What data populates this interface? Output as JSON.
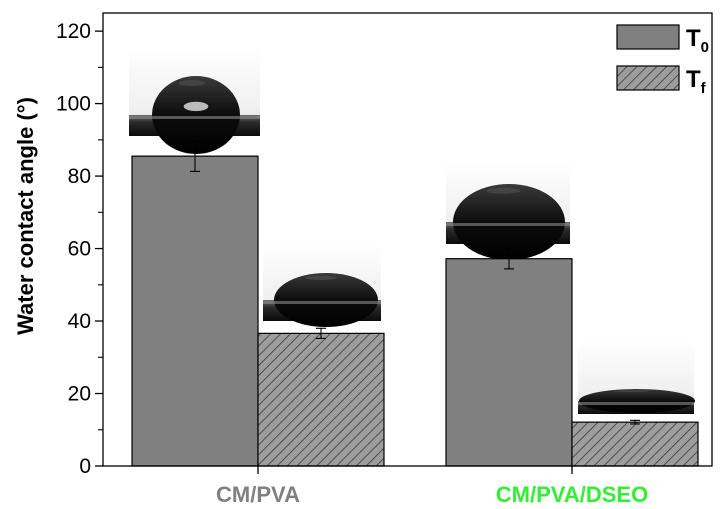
{
  "chart_data": {
    "type": "bar",
    "ylabel": "Water contact angle (°)",
    "ylim": [
      0,
      125
    ],
    "yticks": [
      0,
      20,
      40,
      60,
      80,
      100,
      120
    ],
    "categories": [
      {
        "label": "CM/PVA",
        "color": "#808080"
      },
      {
        "label": "CM/PVA/DSEO",
        "color": "#33ee33"
      }
    ],
    "series": [
      {
        "name_main": "T",
        "name_sub": "0",
        "fill": "#808080",
        "pattern": "solid",
        "values": [
          85.5,
          57.2
        ],
        "errors": [
          4.2,
          2.8
        ]
      },
      {
        "name_main": "T",
        "name_sub": "f",
        "fill": "#9a9a9a",
        "pattern": "hatch",
        "values": [
          36.6,
          12.1
        ],
        "errors": [
          1.4,
          0.5
        ]
      }
    ],
    "legend_position": "top-right",
    "insets": "water droplet photographs above each bar"
  }
}
